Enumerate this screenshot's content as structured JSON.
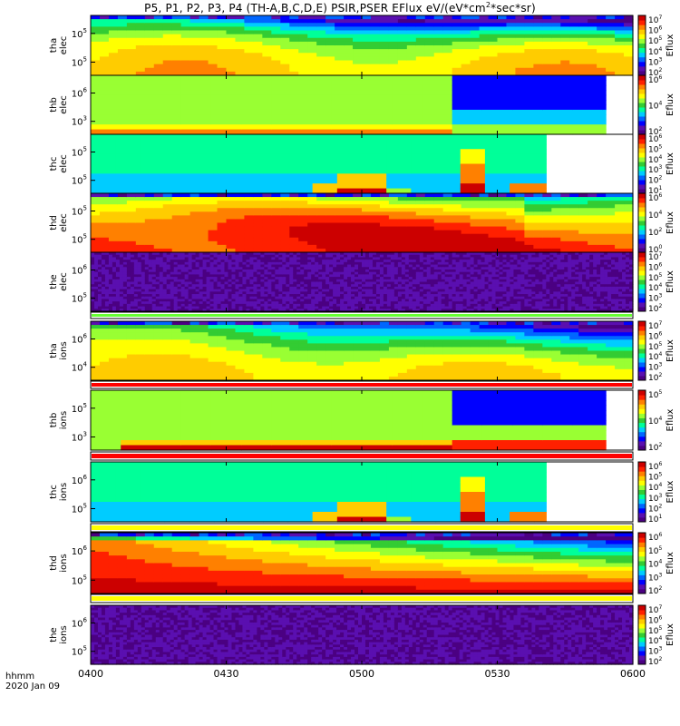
{
  "title": {
    "main": "P5, P1, P2, P3, P4 (TH-A,B,C,D,E) PSIR,PSER EFlux eV/(eV*cm",
    "sup": "2",
    "tail": "*sec*sr)"
  },
  "footer": {
    "line1": "hhmm",
    "line2": "2020 Jan 09"
  },
  "colors": {
    "spectrum": [
      "#4b0082",
      "#5a0fb0",
      "#0000ff",
      "#0066ff",
      "#00ccff",
      "#00ff99",
      "#33cc33",
      "#99ff33",
      "#ffff00",
      "#ffcc00",
      "#ff8000",
      "#ff2000",
      "#cc0000"
    ],
    "gap_red": "#ff0000",
    "gap_yellow": "#ffff00",
    "gap_green": "#66ff33"
  },
  "chart_data": {
    "type": "heatmap",
    "x_ticks": [
      "0400",
      "0430",
      "0500",
      "0530",
      "0600"
    ],
    "x_range": [
      "0400",
      "0600"
    ],
    "y_scale": "log",
    "colorbar_label": "Eflux",
    "panels": [
      {
        "ylabel": [
          "tha",
          "elec"
        ],
        "yticks": [
          "10",
          "10"
        ],
        "ytick_exp": [
          "5",
          "5"
        ],
        "cbar_ticks": [
          "10",
          "10",
          "10",
          "10",
          "10",
          "10"
        ],
        "cbar_exp": [
          "7",
          "6",
          "5",
          "4",
          "3",
          "2"
        ],
        "pattern": "smooth-elec",
        "missing_after": null,
        "gap": null
      },
      {
        "ylabel": [
          "thb",
          "elec"
        ],
        "yticks": [
          "10",
          "10"
        ],
        "ytick_exp": [
          "6",
          "3"
        ],
        "cbar_ticks": [
          "10",
          "10",
          "10"
        ],
        "cbar_exp": [
          "6",
          "4",
          "2"
        ],
        "pattern": "blocky-b",
        "missing_after": 0.95,
        "gap": null
      },
      {
        "ylabel": [
          "thc",
          "elec"
        ],
        "yticks": [
          "10",
          "10"
        ],
        "ytick_exp": [
          "5",
          "5"
        ],
        "cbar_ticks": [
          "10",
          "10",
          "10",
          "10",
          "10",
          "10"
        ],
        "cbar_exp": [
          "6",
          "5",
          "4",
          "3",
          "2",
          "1"
        ],
        "pattern": "blocky-c",
        "missing_after": 0.84,
        "gap": null
      },
      {
        "ylabel": [
          "thd",
          "elec"
        ],
        "yticks": [
          "10",
          "10"
        ],
        "ytick_exp": [
          "5",
          "5"
        ],
        "cbar_ticks": [
          "10",
          "10",
          "10",
          "10"
        ],
        "cbar_exp": [
          "6",
          "4",
          "2",
          "0"
        ],
        "pattern": "smooth-hot",
        "missing_after": null,
        "gap": null
      },
      {
        "ylabel": [
          "the",
          "elec"
        ],
        "yticks": [
          "10",
          "10"
        ],
        "ytick_exp": [
          "6",
          "5"
        ],
        "cbar_ticks": [
          "10",
          "10",
          "10",
          "10",
          "10",
          "10"
        ],
        "cbar_exp": [
          "7",
          "6",
          "5",
          "4",
          "3",
          "2"
        ],
        "pattern": "noise",
        "missing_after": null,
        "gap": "green"
      },
      {
        "ylabel": [
          "tha",
          "ions"
        ],
        "yticks": [
          "10",
          "10"
        ],
        "ytick_exp": [
          "6",
          "4"
        ],
        "cbar_ticks": [
          "10",
          "10",
          "10",
          "10",
          "10",
          "10"
        ],
        "cbar_exp": [
          "7",
          "6",
          "5",
          "4",
          "3",
          "2"
        ],
        "pattern": "smooth-ions",
        "missing_after": null,
        "gap": "red"
      },
      {
        "ylabel": [
          "thb",
          "ions"
        ],
        "yticks": [
          "10",
          "10"
        ],
        "ytick_exp": [
          "5",
          "3"
        ],
        "cbar_ticks": [
          "10",
          "10",
          "10"
        ],
        "cbar_exp": [
          "5",
          "4",
          "2"
        ],
        "pattern": "blocky-bi",
        "missing_after": 0.95,
        "gap": "red"
      },
      {
        "ylabel": [
          "thc",
          "ions"
        ],
        "yticks": [
          "10",
          "10"
        ],
        "ytick_exp": [
          "6",
          "5"
        ],
        "cbar_ticks": [
          "10",
          "10",
          "10",
          "10",
          "10",
          "10"
        ],
        "cbar_exp": [
          "6",
          "5",
          "4",
          "3",
          "2",
          "1"
        ],
        "pattern": "blocky-c",
        "missing_after": 0.84,
        "gap": "yellow"
      },
      {
        "ylabel": [
          "thd",
          "ions"
        ],
        "yticks": [
          "10",
          "10"
        ],
        "ytick_exp": [
          "6",
          "5"
        ],
        "cbar_ticks": [
          "10",
          "10",
          "10",
          "10",
          "10"
        ],
        "cbar_exp": [
          "6",
          "5",
          "4",
          "3",
          "2"
        ],
        "pattern": "smooth-red",
        "missing_after": null,
        "gap": "yellow"
      },
      {
        "ylabel": [
          "the",
          "ions"
        ],
        "yticks": [
          "10",
          "10"
        ],
        "ytick_exp": [
          "6",
          "5"
        ],
        "cbar_ticks": [
          "10",
          "10",
          "10",
          "10",
          "10",
          "10"
        ],
        "cbar_exp": [
          "7",
          "6",
          "5",
          "4",
          "3",
          "2"
        ],
        "pattern": "noise",
        "missing_after": null,
        "gap": null
      }
    ]
  }
}
